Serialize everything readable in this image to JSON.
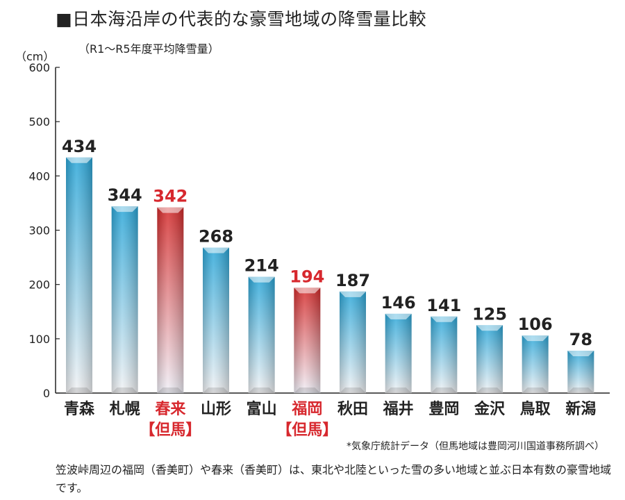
{
  "chart_data": {
    "type": "bar",
    "title": "■日本海沿岸の代表的な豪雪地域の降雪量比較",
    "subtitle": "（R1〜R5年度平均降雪量）",
    "ylabel": "（cm）",
    "ylim": [
      0,
      600
    ],
    "yticks": [
      0,
      100,
      200,
      300,
      400,
      500,
      600
    ],
    "categories": [
      "青森",
      "札幌",
      "春来",
      "山形",
      "富山",
      "福岡",
      "秋田",
      "福井",
      "豊岡",
      "金沢",
      "鳥取",
      "新潟"
    ],
    "category_sublabels": [
      "",
      "",
      "【但馬】",
      "",
      "",
      "【但馬】",
      "",
      "",
      "",
      "",
      "",
      ""
    ],
    "values": [
      434,
      344,
      342,
      268,
      214,
      194,
      187,
      146,
      141,
      125,
      106,
      78
    ],
    "highlight": [
      false,
      false,
      true,
      false,
      false,
      true,
      false,
      false,
      false,
      false,
      false,
      false
    ],
    "colors": {
      "normal_top": "#2aa6d8",
      "normal_bottom": "#f2f2f4",
      "highlight_top": "#d42a2a",
      "highlight_bottom": "#f0f0f8",
      "highlight_text": "#d7282e"
    },
    "grid": false,
    "legend": "none"
  },
  "source_note": "*気象庁統計データ（但馬地域は豊岡河川国道事務所調べ）",
  "footnote": "笠波峠周辺の福岡（香美町）や春来（香美町）は、東北や北陸といった雪の多い地域と並ぶ日本有数の豪雪地域です。"
}
